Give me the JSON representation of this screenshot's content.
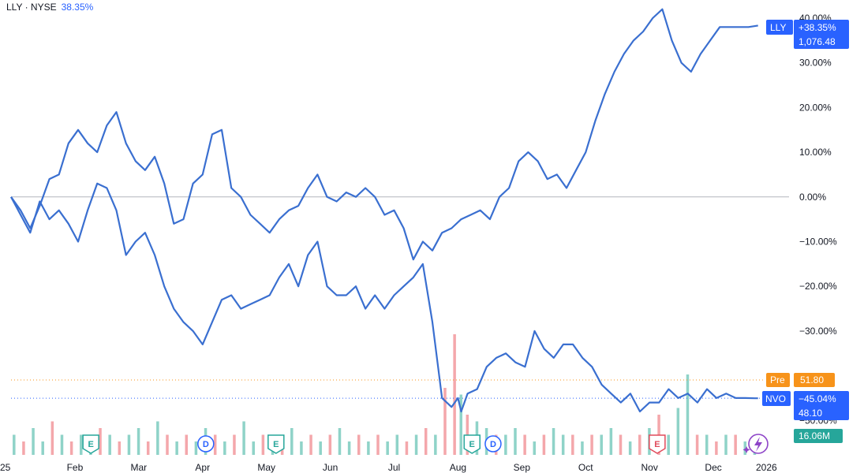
{
  "header": {
    "symbol": "LLY · NYSE",
    "change": "38.35%"
  },
  "colors": {
    "line": "#3a6fd0",
    "zero_line": "#b2b5be",
    "badge_blue": "#2962ff",
    "badge_orange": "#f7931a",
    "badge_green": "#26a69a",
    "vol_green": "#8fd3c8",
    "vol_red": "#f4a7ab",
    "earnings_green": "#26a69a",
    "earnings_red": "#e04a5a",
    "dividend_blue": "#2962ff"
  },
  "badges": {
    "lly": {
      "label": "LLY",
      "change": "+38.35%",
      "price": "1,076.48"
    },
    "pre": {
      "label": "Pre",
      "price": "51.80"
    },
    "nvo": {
      "label": "NVO",
      "change": "−45.04%",
      "price": "48.10"
    },
    "volume": "16.06M"
  },
  "events": [
    {
      "type": "E",
      "month_pos": 1.25
    },
    {
      "type": "D",
      "month_pos": 3.05
    },
    {
      "type": "E",
      "month_pos": 4.15
    },
    {
      "type": "E",
      "month_pos": 7.22
    },
    {
      "type": "D",
      "month_pos": 7.55
    },
    {
      "type": "E",
      "month_pos": 10.12
    }
  ],
  "chart_data": {
    "type": "line",
    "x_axis_labels": [
      "25",
      "Feb",
      "Mar",
      "Apr",
      "May",
      "Jun",
      "Jul",
      "Aug",
      "Sep",
      "Oct",
      "Nov",
      "Dec",
      "2026"
    ],
    "y_ticks": [
      "40.00%",
      "30.00%",
      "20.00%",
      "10.00%",
      "0.00%",
      "−10.00%",
      "−20.00%",
      "−30.00%",
      "−50.00%"
    ],
    "y_tick_values": [
      40,
      30,
      20,
      10,
      0,
      -10,
      -20,
      -30,
      -50
    ],
    "ylim": [
      -52,
      42
    ],
    "xlim": [
      0,
      12
    ],
    "series": [
      {
        "name": "LLY",
        "x": [
          0,
          0.15,
          0.3,
          0.45,
          0.6,
          0.75,
          0.9,
          1.05,
          1.2,
          1.35,
          1.5,
          1.65,
          1.8,
          1.95,
          2.1,
          2.25,
          2.4,
          2.55,
          2.7,
          2.85,
          3.0,
          3.15,
          3.3,
          3.45,
          3.6,
          3.75,
          3.9,
          4.05,
          4.2,
          4.35,
          4.5,
          4.65,
          4.8,
          4.95,
          5.1,
          5.25,
          5.4,
          5.55,
          5.7,
          5.85,
          6.0,
          6.15,
          6.3,
          6.45,
          6.6,
          6.75,
          6.9,
          7.05,
          7.2,
          7.35,
          7.5,
          7.65,
          7.8,
          7.95,
          8.1,
          8.25,
          8.4,
          8.55,
          8.7,
          8.85,
          9.0,
          9.15,
          9.3,
          9.45,
          9.6,
          9.75,
          9.9,
          10.05,
          10.2,
          10.35,
          10.5,
          10.65,
          10.8,
          10.95,
          11.1,
          11.25,
          11.4,
          11.55,
          11.7
        ],
        "values": [
          0,
          -3,
          -7,
          -2,
          4,
          5,
          12,
          15,
          12,
          10,
          16,
          19,
          12,
          8,
          6,
          9,
          3,
          -6,
          -5,
          3,
          5,
          14,
          15,
          2,
          0,
          -4,
          -6,
          -8,
          -5,
          -3,
          -2,
          2,
          5,
          0,
          -1,
          1,
          0,
          2,
          0,
          -4,
          -3,
          -7,
          -14,
          -10,
          -12,
          -8,
          -7,
          -5,
          -4,
          -3,
          -5,
          0,
          2,
          8,
          10,
          8,
          4,
          5,
          2,
          6,
          10,
          17,
          23,
          28,
          32,
          35,
          37,
          40,
          42,
          35,
          30,
          28,
          32,
          35,
          38,
          38,
          38,
          38,
          38.35
        ]
      },
      {
        "name": "NVO",
        "x": [
          0,
          0.15,
          0.3,
          0.45,
          0.6,
          0.75,
          0.9,
          1.05,
          1.2,
          1.35,
          1.5,
          1.65,
          1.8,
          1.95,
          2.1,
          2.25,
          2.4,
          2.55,
          2.7,
          2.85,
          3.0,
          3.15,
          3.3,
          3.45,
          3.6,
          3.75,
          3.9,
          4.05,
          4.2,
          4.35,
          4.5,
          4.65,
          4.8,
          4.95,
          5.1,
          5.25,
          5.4,
          5.55,
          5.7,
          5.85,
          6.0,
          6.15,
          6.3,
          6.45,
          6.6,
          6.75,
          6.9,
          7.0,
          7.05,
          7.15,
          7.3,
          7.45,
          7.6,
          7.75,
          7.9,
          8.05,
          8.2,
          8.35,
          8.5,
          8.65,
          8.8,
          8.95,
          9.1,
          9.25,
          9.4,
          9.55,
          9.7,
          9.85,
          10.0,
          10.15,
          10.3,
          10.45,
          10.6,
          10.75,
          10.9,
          11.05,
          11.2,
          11.35,
          11.5,
          11.65,
          11.7
        ],
        "values": [
          0,
          -4,
          -8,
          -1,
          -5,
          -3,
          -6,
          -10,
          -3,
          3,
          2,
          -3,
          -13,
          -10,
          -8,
          -13,
          -20,
          -25,
          -28,
          -30,
          -33,
          -28,
          -23,
          -22,
          -25,
          -24,
          -23,
          -22,
          -18,
          -15,
          -20,
          -13,
          -10,
          -20,
          -22,
          -22,
          -20,
          -25,
          -22,
          -25,
          -22,
          -20,
          -18,
          -15,
          -28,
          -45,
          -47,
          -45,
          -48,
          -44,
          -43,
          -38,
          -36,
          -35,
          -37,
          -38,
          -30,
          -34,
          -36,
          -33,
          -33,
          -36,
          -38,
          -42,
          -44,
          -46,
          -44,
          -48,
          -46,
          -46,
          -43,
          -45,
          -44,
          -46,
          -43,
          -45,
          -44,
          -45,
          -45,
          -45.04,
          -45.04
        ]
      }
    ],
    "volume": {
      "x": [
        0.05,
        0.2,
        0.35,
        0.5,
        0.65,
        0.8,
        0.95,
        1.1,
        1.25,
        1.4,
        1.55,
        1.7,
        1.85,
        2.0,
        2.15,
        2.3,
        2.45,
        2.6,
        2.75,
        2.9,
        3.05,
        3.2,
        3.35,
        3.5,
        3.65,
        3.8,
        3.95,
        4.1,
        4.25,
        4.4,
        4.55,
        4.7,
        4.85,
        5.0,
        5.15,
        5.3,
        5.45,
        5.6,
        5.75,
        5.9,
        6.05,
        6.2,
        6.35,
        6.5,
        6.65,
        6.8,
        6.95,
        7.05,
        7.15,
        7.3,
        7.45,
        7.6,
        7.75,
        7.9,
        8.05,
        8.2,
        8.35,
        8.5,
        8.65,
        8.8,
        8.95,
        9.1,
        9.25,
        9.4,
        9.55,
        9.7,
        9.85,
        10.0,
        10.15,
        10.3,
        10.45,
        10.6,
        10.75,
        10.9,
        11.05,
        11.2,
        11.35,
        11.5,
        11.65
      ],
      "values": [
        3,
        2,
        4,
        2,
        5,
        3,
        2,
        3,
        2,
        4,
        3,
        2,
        3,
        4,
        2,
        5,
        3,
        2,
        3,
        2,
        4,
        3,
        2,
        3,
        5,
        2,
        3,
        2,
        3,
        4,
        2,
        3,
        2,
        3,
        4,
        2,
        3,
        2,
        3,
        2,
        3,
        2,
        3,
        4,
        3,
        10,
        18,
        9,
        6,
        5,
        4,
        3,
        3,
        4,
        3,
        2,
        3,
        4,
        3,
        3,
        2,
        3,
        3,
        4,
        3,
        2,
        3,
        4,
        6,
        3,
        7,
        12,
        3,
        3,
        2,
        3,
        3,
        2,
        3
      ],
      "up": [
        true,
        false,
        true,
        true,
        false,
        true,
        false,
        true,
        true,
        false,
        true,
        false,
        true,
        true,
        false,
        true,
        false,
        true,
        false,
        true,
        true,
        false,
        true,
        false,
        true,
        true,
        false,
        true,
        false,
        true,
        true,
        false,
        true,
        false,
        true,
        true,
        false,
        true,
        false,
        true,
        true,
        false,
        true,
        false,
        true,
        false,
        false,
        true,
        false,
        true,
        true,
        false,
        true,
        true,
        false,
        true,
        false,
        true,
        true,
        false,
        true,
        false,
        true,
        true,
        false,
        true,
        false,
        true,
        false,
        true,
        true,
        true,
        false,
        true,
        false,
        true,
        false,
        true,
        true
      ]
    }
  }
}
